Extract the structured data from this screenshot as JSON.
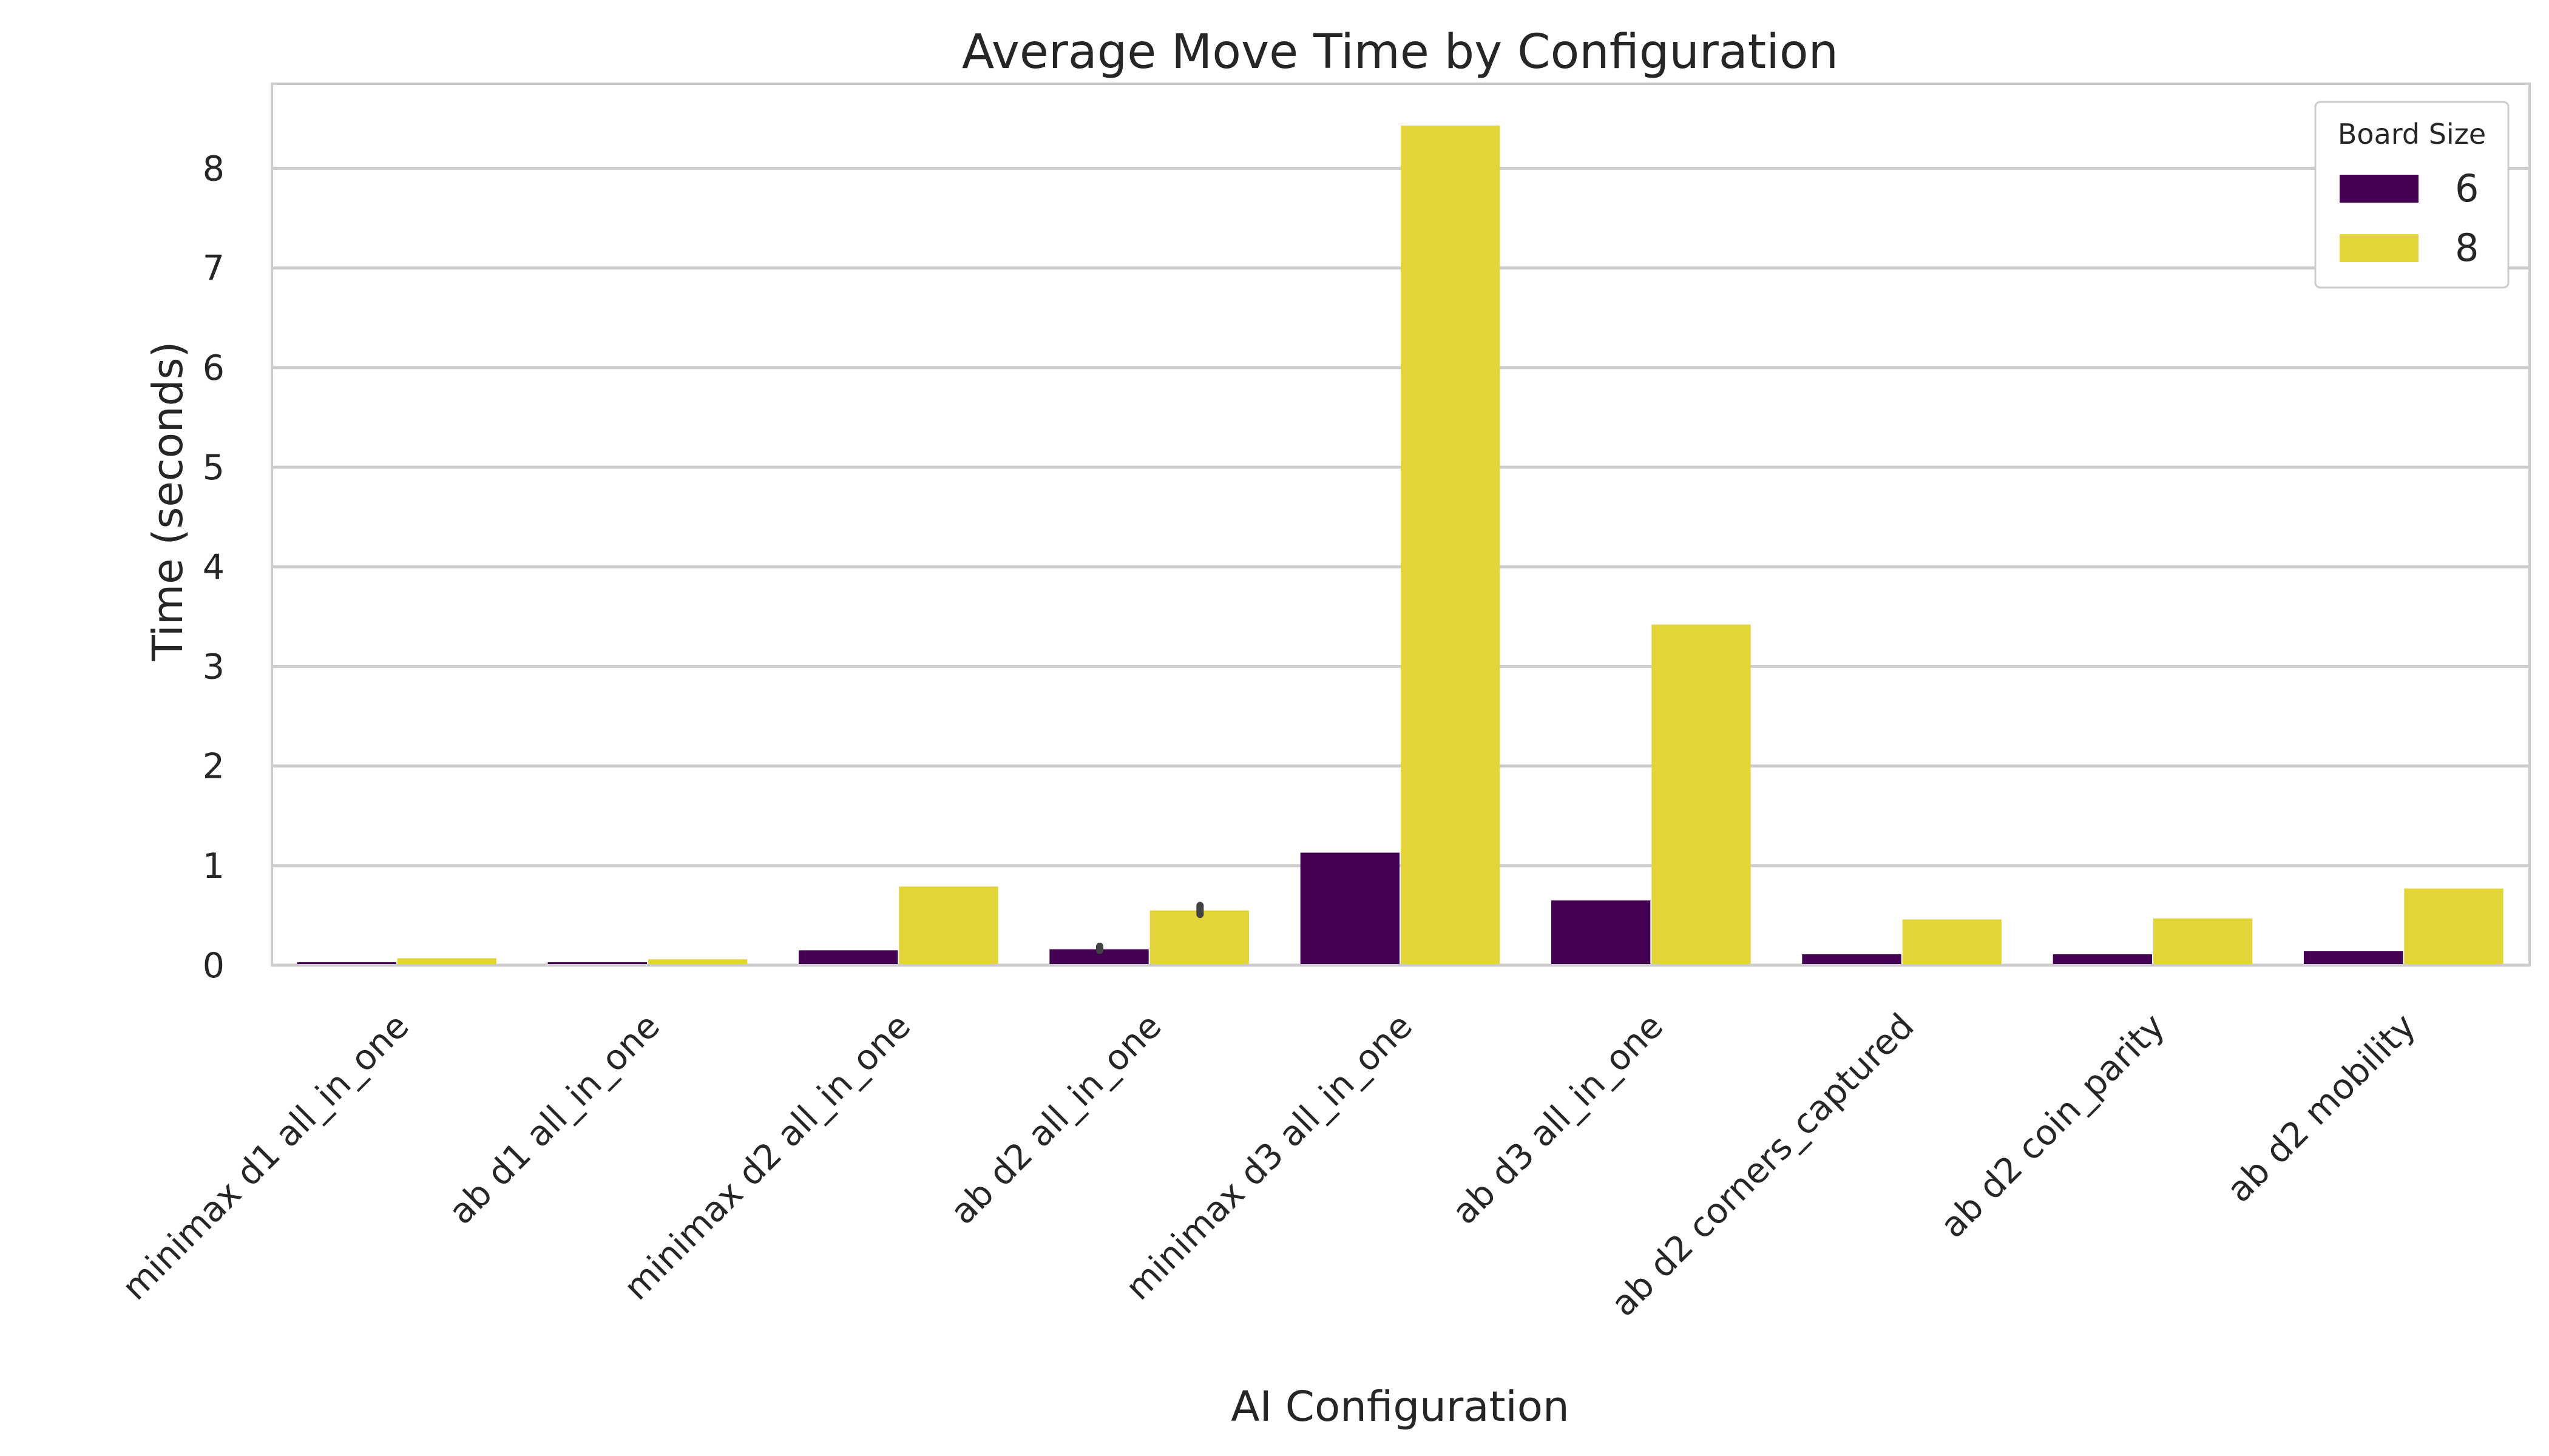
{
  "chart_data": {
    "type": "bar",
    "title": "Average Move Time by Configuration",
    "xlabel": "AI Configuration",
    "ylabel": "Time (seconds)",
    "ylim": [
      0,
      8.85
    ],
    "yticks": [
      0,
      1,
      2,
      3,
      4,
      5,
      6,
      7,
      8
    ],
    "grid": "horizontal",
    "legend": {
      "title": "Board Size",
      "placement": "top-right"
    },
    "categories": [
      "minimax d1 all_in_one",
      "ab d1 all_in_one",
      "minimax d2 all_in_one",
      "ab d2 all_in_one",
      "minimax d3 all_in_one",
      "ab d3 all_in_one",
      "ab d2 corners_captured",
      "ab d2 coin_parity",
      "ab d2 mobility"
    ],
    "series": [
      {
        "name": "6",
        "color": "#440154",
        "values": [
          0.03,
          0.03,
          0.15,
          0.16,
          1.13,
          0.65,
          0.11,
          0.11,
          0.14
        ]
      },
      {
        "name": "8",
        "color": "#e3d43a",
        "values": [
          0.07,
          0.06,
          0.79,
          0.55,
          8.43,
          3.42,
          0.46,
          0.47,
          0.77
        ]
      }
    ],
    "error_bars": [
      {
        "series": "6",
        "category": "ab d2 all_in_one",
        "low": 0.15,
        "high": 0.19
      },
      {
        "series": "8",
        "category": "ab d2 all_in_one",
        "low": 0.51,
        "high": 0.6
      }
    ]
  }
}
